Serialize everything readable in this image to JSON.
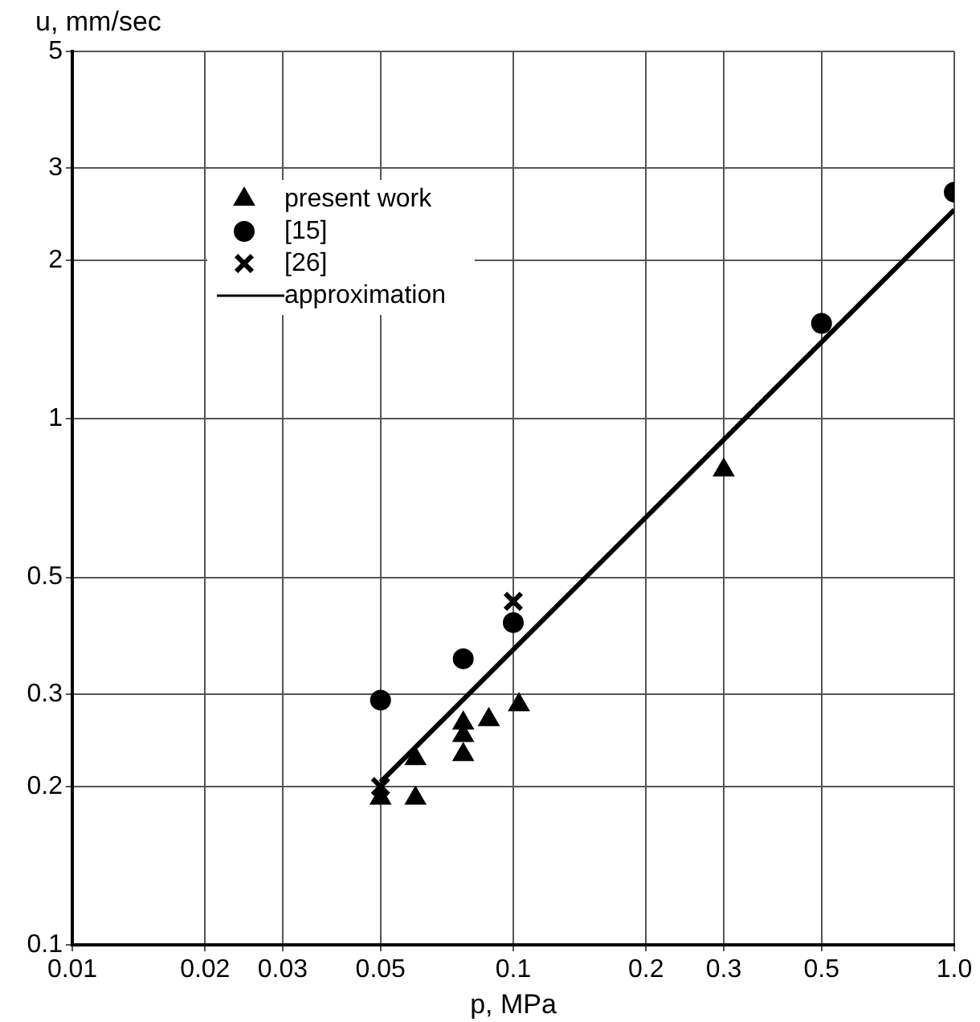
{
  "chart_data": {
    "type": "scatter",
    "xlabel": "p, MPa",
    "ylabel": "u, mm/sec",
    "log": "xy",
    "grid": true,
    "legend": "top left",
    "xlim": [
      0.01,
      1.0
    ],
    "xticks": [
      0.01,
      0.02,
      0.03,
      0.05,
      0.1,
      0.2,
      0.3,
      0.5,
      {
        "value": 1,
        "label": "1.0"
      }
    ],
    "ylim": [
      0.1,
      5
    ],
    "yticks": [
      0.1,
      0.2,
      0.3,
      0.5,
      1,
      2,
      3,
      5
    ],
    "series": [
      {
        "name": "present work",
        "color": "#000000",
        "marker": "triangle",
        "x": [
          0.05,
          0.06,
          0.06,
          0.077,
          0.077,
          0.077,
          0.088,
          0.103,
          0.3
        ],
        "values": [
          0.19,
          0.19,
          0.226,
          0.264,
          0.25,
          0.23,
          0.268,
          0.286,
          0.8
        ]
      },
      {
        "name": "[15]",
        "color": "#000000",
        "marker": "circle",
        "x": [
          0.05,
          0.077,
          0.1,
          0.5,
          1.0
        ],
        "values": [
          0.292,
          0.35,
          0.41,
          1.52,
          2.7
        ]
      },
      {
        "name": "[26]",
        "color": "#000000",
        "marker": "cross",
        "x": [
          0.05,
          0.1
        ],
        "values": [
          0.2,
          0.45
        ]
      },
      {
        "name": "approximation",
        "color": "#000000",
        "type": "line",
        "marker": "none",
        "x": [
          0.05,
          1.0
        ],
        "values": [
          0.204,
          2.5
        ]
      }
    ]
  }
}
